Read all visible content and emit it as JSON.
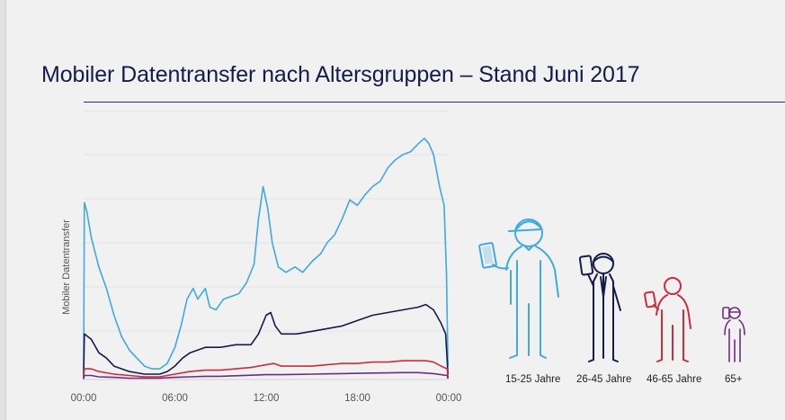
{
  "title": "Mobiler Datentransfer nach Altersgruppen – Stand Juni 2017",
  "chart_data": {
    "type": "line",
    "title": "Mobiler Datentransfer nach Altersgruppen – Stand Juni 2017",
    "ylabel": "Mobiler Datentransfer",
    "xlabel": "",
    "x_ticks": [
      "00:00",
      "06:00",
      "12:00",
      "18:00",
      "00:00"
    ],
    "xlim": [
      0,
      24
    ],
    "ylim": [
      0,
      100
    ],
    "y_tick_labels": "none",
    "grid": "horizontal",
    "legend": "icons-right",
    "series": [
      {
        "name": "15-25 Jahre",
        "color": "#3fa9e0",
        "points": [
          [
            0,
            0
          ],
          [
            0.05,
            66
          ],
          [
            0.2,
            63
          ],
          [
            0.5,
            53
          ],
          [
            1,
            42
          ],
          [
            1.5,
            34
          ],
          [
            2,
            24
          ],
          [
            2.5,
            16
          ],
          [
            3,
            11
          ],
          [
            3.5,
            8
          ],
          [
            4,
            5
          ],
          [
            4.5,
            4
          ],
          [
            5,
            4
          ],
          [
            5.5,
            6
          ],
          [
            6,
            12
          ],
          [
            6.4,
            20
          ],
          [
            6.8,
            30
          ],
          [
            7.2,
            34
          ],
          [
            7.5,
            30
          ],
          [
            8,
            34
          ],
          [
            8.3,
            27
          ],
          [
            8.7,
            26
          ],
          [
            9.2,
            30
          ],
          [
            9.7,
            31
          ],
          [
            10.2,
            32
          ],
          [
            10.7,
            36
          ],
          [
            11.2,
            43
          ],
          [
            11.5,
            60
          ],
          [
            11.8,
            72
          ],
          [
            12.1,
            64
          ],
          [
            12.4,
            51
          ],
          [
            12.8,
            42
          ],
          [
            13.3,
            40
          ],
          [
            13.9,
            42
          ],
          [
            14.4,
            40
          ],
          [
            15,
            44
          ],
          [
            15.6,
            47
          ],
          [
            16,
            51
          ],
          [
            16.5,
            54
          ],
          [
            17,
            60
          ],
          [
            17.5,
            67
          ],
          [
            18,
            65
          ],
          [
            18.5,
            69
          ],
          [
            19,
            72
          ],
          [
            19.5,
            74
          ],
          [
            20,
            79
          ],
          [
            20.5,
            82
          ],
          [
            21,
            84
          ],
          [
            21.5,
            85
          ],
          [
            22,
            88
          ],
          [
            22.4,
            90
          ],
          [
            22.7,
            88
          ],
          [
            23,
            84
          ],
          [
            23.4,
            72
          ],
          [
            23.7,
            65
          ],
          [
            23.85,
            40
          ],
          [
            23.95,
            5
          ]
        ]
      },
      {
        "name": "26-45 Jahre",
        "color": "#141b4d",
        "points": [
          [
            0,
            1
          ],
          [
            0.05,
            17
          ],
          [
            0.5,
            15
          ],
          [
            1,
            10
          ],
          [
            1.5,
            8
          ],
          [
            2,
            5
          ],
          [
            3,
            3
          ],
          [
            4,
            2
          ],
          [
            5,
            2
          ],
          [
            5.5,
            3
          ],
          [
            6,
            5
          ],
          [
            6.5,
            8
          ],
          [
            7,
            10
          ],
          [
            7.5,
            11
          ],
          [
            8,
            12
          ],
          [
            9,
            12
          ],
          [
            10,
            13
          ],
          [
            11,
            13
          ],
          [
            11.5,
            17
          ],
          [
            12,
            24
          ],
          [
            12.3,
            25
          ],
          [
            12.6,
            20
          ],
          [
            13,
            17
          ],
          [
            14,
            17
          ],
          [
            15,
            18
          ],
          [
            16,
            19
          ],
          [
            17,
            20
          ],
          [
            18,
            22
          ],
          [
            19,
            24
          ],
          [
            20,
            25
          ],
          [
            21,
            26
          ],
          [
            22,
            27
          ],
          [
            22.5,
            28
          ],
          [
            23,
            26
          ],
          [
            23.5,
            21
          ],
          [
            23.8,
            17
          ],
          [
            23.95,
            2
          ]
        ]
      },
      {
        "name": "46-65 Jahre",
        "color": "#cc2d3e",
        "points": [
          [
            0,
            0.5
          ],
          [
            0.05,
            4
          ],
          [
            0.5,
            4
          ],
          [
            1,
            3
          ],
          [
            2,
            2
          ],
          [
            3,
            1.5
          ],
          [
            4,
            1
          ],
          [
            5,
            1
          ],
          [
            6,
            2
          ],
          [
            7,
            3
          ],
          [
            8,
            3.5
          ],
          [
            9,
            3.5
          ],
          [
            10,
            4
          ],
          [
            11,
            4.5
          ],
          [
            12,
            5.5
          ],
          [
            12.5,
            6
          ],
          [
            13,
            5
          ],
          [
            14,
            5
          ],
          [
            15,
            5
          ],
          [
            16,
            5.5
          ],
          [
            17,
            6
          ],
          [
            18,
            6
          ],
          [
            19,
            6.5
          ],
          [
            20,
            6.5
          ],
          [
            21,
            7
          ],
          [
            22,
            7
          ],
          [
            22.5,
            7
          ],
          [
            23,
            6.5
          ],
          [
            23.5,
            5
          ],
          [
            23.9,
            4
          ],
          [
            23.95,
            0.5
          ]
        ]
      },
      {
        "name": "65+",
        "color": "#6f2c85",
        "points": [
          [
            0,
            0.3
          ],
          [
            0.05,
            1.5
          ],
          [
            0.5,
            1.5
          ],
          [
            1,
            1
          ],
          [
            2,
            0.8
          ],
          [
            3,
            0.5
          ],
          [
            4,
            0.5
          ],
          [
            5,
            0.5
          ],
          [
            6,
            0.8
          ],
          [
            7,
            1
          ],
          [
            8,
            1.2
          ],
          [
            9,
            1.2
          ],
          [
            10,
            1.4
          ],
          [
            11,
            1.6
          ],
          [
            12,
            1.8
          ],
          [
            13,
            1.8
          ],
          [
            14,
            1.9
          ],
          [
            15,
            2
          ],
          [
            16,
            2.1
          ],
          [
            17,
            2.2
          ],
          [
            18,
            2.3
          ],
          [
            19,
            2.4
          ],
          [
            20,
            2.5
          ],
          [
            21,
            2.6
          ],
          [
            22,
            2.6
          ],
          [
            23,
            2.2
          ],
          [
            23.9,
            1.5
          ],
          [
            23.95,
            0.3
          ]
        ]
      }
    ]
  }
}
